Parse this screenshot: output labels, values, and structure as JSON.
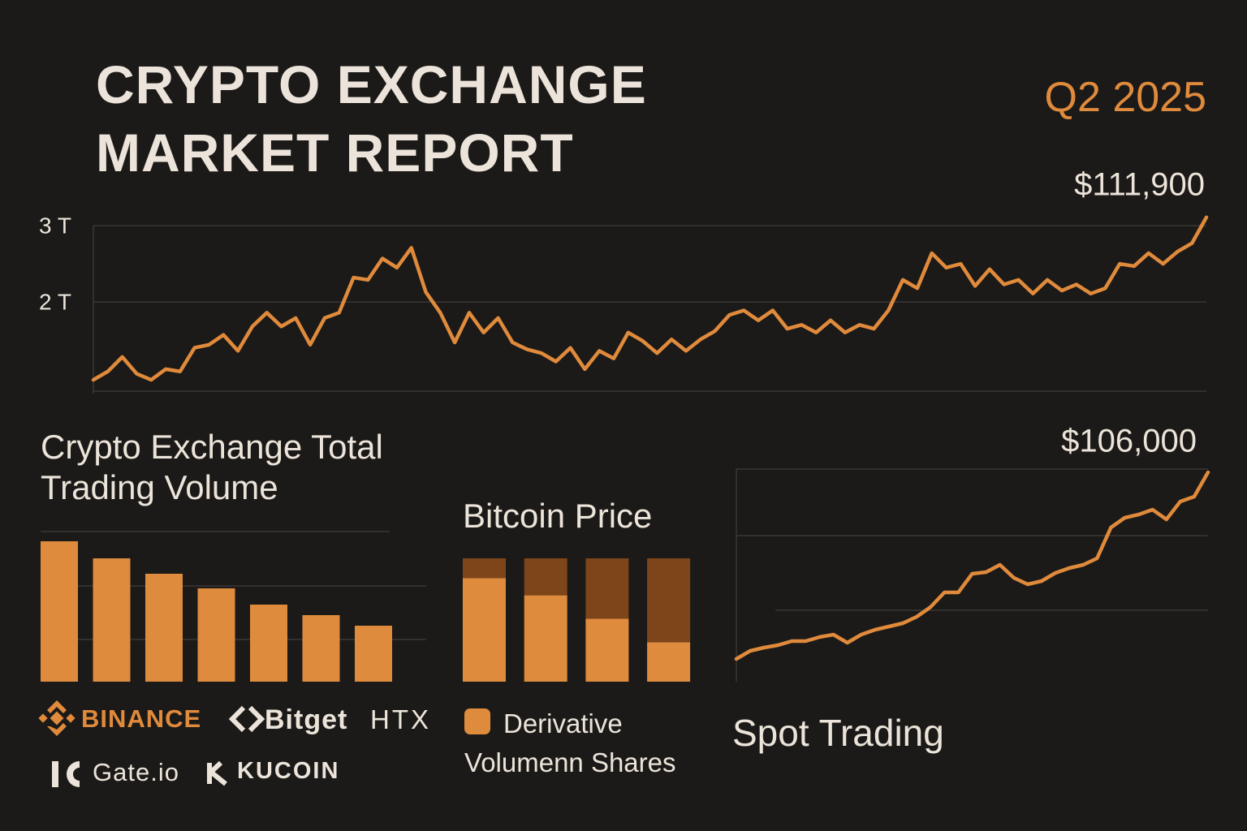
{
  "header": {
    "title": "CRYPTO EXCHANGE MARKET REPORT",
    "period": "Q2 2025"
  },
  "chart_data": [
    {
      "type": "line",
      "annotation": "$111,900",
      "color": "#e08a3c",
      "ylim": [
        0.8,
        3.15
      ],
      "yticks": [
        {
          "value": 2,
          "label": "2 T"
        },
        {
          "value": 3,
          "label": "3 T"
        }
      ],
      "grid": true,
      "values": [
        0.98,
        1.09,
        1.28,
        1.06,
        0.98,
        1.12,
        1.09,
        1.4,
        1.44,
        1.57,
        1.36,
        1.68,
        1.86,
        1.68,
        1.79,
        1.44,
        1.79,
        1.86,
        2.32,
        2.29,
        2.57,
        2.45,
        2.71,
        2.13,
        1.86,
        1.47,
        1.86,
        1.6,
        1.79,
        1.47,
        1.38,
        1.33,
        1.22,
        1.4,
        1.12,
        1.36,
        1.26,
        1.6,
        1.49,
        1.33,
        1.51,
        1.36,
        1.51,
        1.62,
        1.83,
        1.89,
        1.76,
        1.89,
        1.65,
        1.7,
        1.6,
        1.76,
        1.6,
        1.7,
        1.65,
        1.89,
        2.29,
        2.18,
        2.64,
        2.45,
        2.5,
        2.21,
        2.43,
        2.23,
        2.29,
        2.11,
        2.29,
        2.15,
        2.23,
        2.11,
        2.18,
        2.5,
        2.47,
        2.64,
        2.5,
        2.66,
        2.77,
        3.11
      ]
    },
    {
      "type": "bar",
      "title": "Crypto Exchange Total Trading Volume",
      "color": "#de8b3d",
      "categories": [
        null,
        null,
        null,
        null,
        null,
        null,
        null
      ],
      "values": [
        173,
        152,
        133,
        115,
        95,
        82,
        69
      ],
      "exchanges": [
        "BINANCE",
        "Bitget",
        "HTX",
        "Gate.io",
        "KUCOIN"
      ]
    },
    {
      "type": "stacked_bar",
      "title": "Bitcoin Price",
      "categories": [
        null,
        null,
        null,
        null
      ],
      "series": [
        {
          "name": "Derivative Volumenn Shares",
          "color": "#de8b3d",
          "values": [
            84,
            70,
            51,
            32
          ]
        },
        {
          "name": null,
          "color": "#7d4519",
          "values": [
            16,
            30,
            49,
            68
          ]
        }
      ]
    },
    {
      "type": "line",
      "title": "Spot Trading",
      "annotation": "$106,000",
      "color": "#e08a3c",
      "values": [
        28,
        38,
        42,
        45,
        50,
        50,
        55,
        58,
        48,
        58,
        64,
        68,
        72,
        80,
        92,
        110,
        110,
        133,
        135,
        144,
        128,
        120,
        124,
        134,
        140,
        144,
        152,
        190,
        202,
        206,
        212,
        200,
        222,
        228,
        258
      ]
    }
  ]
}
